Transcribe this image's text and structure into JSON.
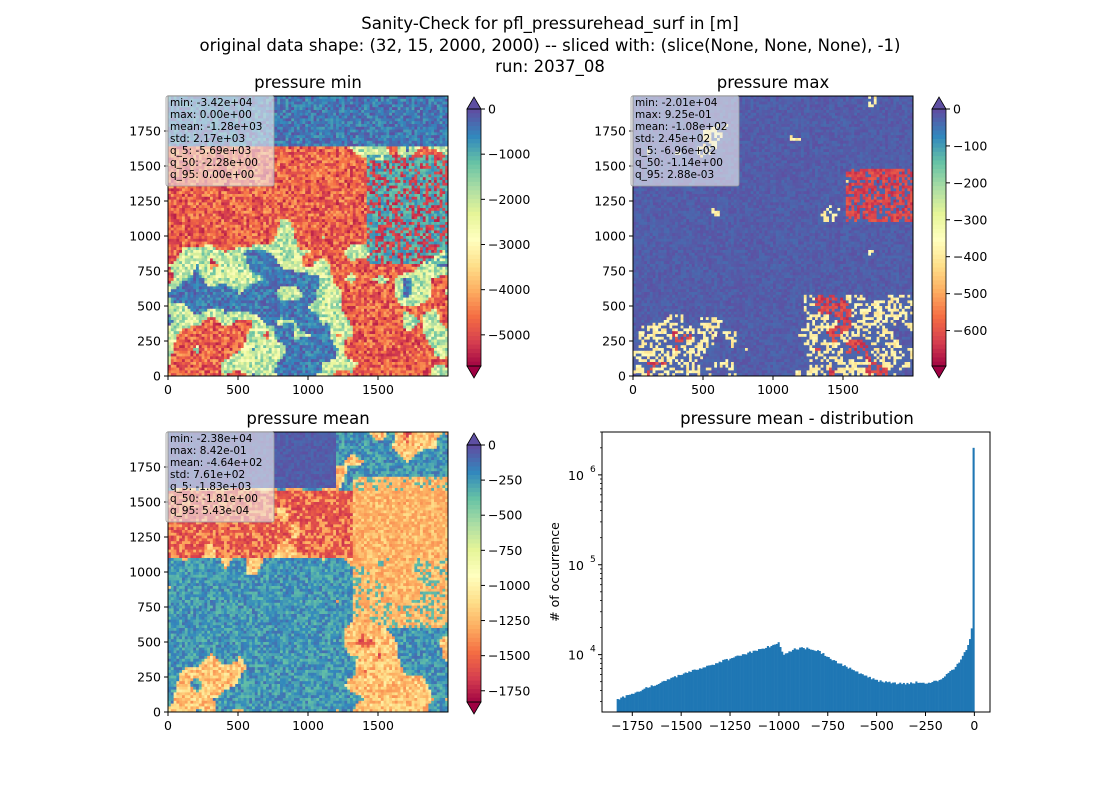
{
  "figure": {
    "title_line1": "Sanity-Check for pfl_pressurehead_surf in [m]",
    "title_line2": "original data shape: (32, 15, 2000, 2000) -- sliced with: (slice(None, None, None), -1)",
    "title_line3": "run: 2037_08"
  },
  "colors": {
    "spectral": [
      "#9e0142",
      "#d53e4f",
      "#f46d43",
      "#fdae61",
      "#fee08b",
      "#ffffbf",
      "#e6f598",
      "#abdda4",
      "#66c2a5",
      "#3288bd",
      "#5e4fa2"
    ],
    "hist_bar": "#1f77b4",
    "stats_box": "#f2f2f2"
  },
  "chart_data": [
    {
      "type": "heatmap",
      "title": "pressure min",
      "colormap": "Spectral",
      "colorbar_ticks": [
        "0",
        "−1000",
        "−2000",
        "−3000",
        "−4000",
        "−5000"
      ],
      "colorbar_range": [
        -5690,
        0
      ],
      "x_ticks": [
        "0",
        "500",
        "1000",
        "1500"
      ],
      "y_ticks": [
        "0",
        "250",
        "500",
        "750",
        "1000",
        "1250",
        "1500",
        "1750"
      ],
      "xlim": [
        0,
        2000
      ],
      "ylim": [
        0,
        2000
      ],
      "stats": [
        "min: -3.42e+04",
        "max: 0.00e+00",
        "mean: -1.28e+03",
        "std: 2.17e+03",
        "q_5: -5.69e+03",
        "q_50: -2.28e+00",
        "q_95: 0.00e+00"
      ]
    },
    {
      "type": "heatmap",
      "title": "pressure max",
      "colormap": "Spectral",
      "colorbar_ticks": [
        "0",
        "−100",
        "−200",
        "−300",
        "−400",
        "−500",
        "−600"
      ],
      "colorbar_range": [
        -696,
        0
      ],
      "x_ticks": [
        "0",
        "500",
        "1000",
        "1500"
      ],
      "y_ticks": [
        "0",
        "250",
        "500",
        "750",
        "1000",
        "1250",
        "1500",
        "1750"
      ],
      "xlim": [
        0,
        2000
      ],
      "ylim": [
        0,
        2000
      ],
      "stats": [
        "min: -2.01e+04",
        "max: 9.25e-01",
        "mean: -1.08e+02",
        "std: 2.45e+02",
        "q_5: -6.96e+02",
        "q_50: -1.14e+00",
        "q_95: 2.88e-03"
      ]
    },
    {
      "type": "heatmap",
      "title": "pressure mean",
      "colormap": "Spectral",
      "colorbar_ticks": [
        "0",
        "−250",
        "−500",
        "−750",
        "−1000",
        "−1250",
        "−1500",
        "−1750"
      ],
      "colorbar_range": [
        -1830,
        0
      ],
      "x_ticks": [
        "0",
        "500",
        "1000",
        "1500"
      ],
      "y_ticks": [
        "0",
        "250",
        "500",
        "750",
        "1000",
        "1250",
        "1500",
        "1750"
      ],
      "xlim": [
        0,
        2000
      ],
      "ylim": [
        0,
        2000
      ],
      "stats": [
        "min: -2.38e+04",
        "max: 8.42e-01",
        "mean: -4.64e+02",
        "std: 7.61e+02",
        "q_5: -1.83e+03",
        "q_50: -1.81e+00",
        "q_95: 5.43e-04"
      ]
    },
    {
      "type": "bar",
      "title": "pressure mean - distribution",
      "ylabel": "# of occurrence",
      "xlabel": "",
      "yscale": "log",
      "xlim": [
        -1905,
        80
      ],
      "ylim": [
        2300,
        3000000
      ],
      "x_ticks": [
        "−1750",
        "−1500",
        "−1250",
        "−1000",
        "−750",
        "−500",
        "−250",
        "0"
      ],
      "x_tick_values": [
        -1750,
        -1500,
        -1250,
        -1000,
        -750,
        -500,
        -250,
        0
      ],
      "y_tick_values": [
        10000,
        100000,
        1000000
      ],
      "profile_x": [
        -1830,
        -1750,
        -1500,
        -1250,
        -1150,
        -1050,
        -1000,
        -980,
        -950,
        -920,
        -880,
        -850,
        -800,
        -750,
        -700,
        -650,
        -600,
        -550,
        -500,
        -450,
        -400,
        -350,
        -300,
        -250,
        -200,
        -150,
        -100,
        -60,
        -30,
        -15,
        -8,
        -4,
        -2,
        0
      ],
      "profile_y": [
        3100,
        3700,
        6000,
        9000,
        10500,
        12300,
        13500,
        10000,
        10600,
        11500,
        12000,
        11600,
        11000,
        9500,
        8200,
        7300,
        6400,
        5700,
        5200,
        4900,
        4800,
        4800,
        4900,
        4800,
        5000,
        5700,
        7200,
        9500,
        13000,
        18000,
        25000,
        35000,
        50000,
        2000000
      ]
    }
  ]
}
